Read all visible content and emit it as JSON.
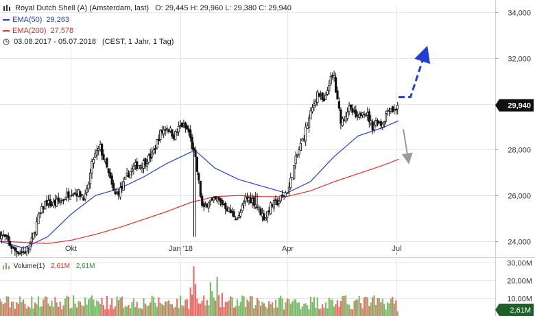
{
  "header": {
    "instrument": "Royal Dutch Shell (A) (Amsterdam, last)",
    "ohlc": "O: 29,445  H: 29,960  L: 29,380  C: 29,940",
    "ema50_label": "EMA(50)",
    "ema50_value": "29,263",
    "ema200_label": "EMA(200)",
    "ema200_value": "27,578",
    "period": "03.08.2017 - 05.07.2018",
    "period_note": "(CEST, 1 Jahr, 1 Tag)"
  },
  "volume_legend": {
    "label": "Volume(1)",
    "value_red": "2,61M",
    "value_green": "2,61M"
  },
  "colors": {
    "ema50": "#1f3fd6",
    "ema200": "#e0302a",
    "candle": "#111111",
    "vol_up": "#7cbc6a",
    "vol_down": "#e8706a",
    "grid": "#e6e6e6",
    "last_price_bg": "#111111",
    "volume_last_bg": "#1f5f2a",
    "projection_up": "#1f3fd6",
    "projection_down": "#9a9a9a"
  },
  "chart_data": {
    "type": "candlestick",
    "x_start": "03.08.2017",
    "x_end": "05.07.2018",
    "x_ticks": [
      "Okt",
      "Jan '18",
      "Apr",
      "Jul"
    ],
    "x_tick_days": [
      59,
      151,
      241,
      332
    ],
    "y_ticks": [
      "24,000",
      "26,000",
      "28,000",
      "30,000",
      "32,000",
      "34,000"
    ],
    "y_tick_values": [
      24,
      26,
      28,
      30,
      32,
      34
    ],
    "ylim": [
      23.4,
      34.3
    ],
    "last_price_label": "29,940",
    "last_price": 29.94,
    "close_anchor_days": [
      0,
      5,
      12,
      20,
      26,
      32,
      38,
      44,
      52,
      60,
      66,
      72,
      78,
      84,
      90,
      96,
      102,
      108,
      114,
      120,
      128,
      134,
      140,
      146,
      152,
      158,
      164,
      170,
      175,
      178,
      182,
      188,
      194,
      200,
      206,
      212,
      218,
      222,
      226,
      232,
      236,
      238,
      242,
      248,
      254,
      260,
      266,
      272,
      276,
      280,
      282,
      286,
      292,
      296,
      300,
      304,
      308,
      312,
      316,
      320,
      326,
      330,
      334
    ],
    "close_anchor_values": [
      24.3,
      24.1,
      23.6,
      23.5,
      23.9,
      25.0,
      25.7,
      25.6,
      25.8,
      26.2,
      26.1,
      25.9,
      27.6,
      28.1,
      27.1,
      26.0,
      26.3,
      27.0,
      27.3,
      27.4,
      27.8,
      28.7,
      29.0,
      28.6,
      29.1,
      28.8,
      27.5,
      25.3,
      25.8,
      25.7,
      25.8,
      25.6,
      25.2,
      25.0,
      25.9,
      25.8,
      25.3,
      25.0,
      25.5,
      25.7,
      25.9,
      26.0,
      26.3,
      27.6,
      28.5,
      29.5,
      30.5,
      30.0,
      31.0,
      31.2,
      30.3,
      29.2,
      29.8,
      29.6,
      29.3,
      29.8,
      29.5,
      29.0,
      29.3,
      29.1,
      29.9,
      29.7,
      29.94
    ],
    "ema50_anchor_days": [
      0,
      20,
      40,
      60,
      80,
      100,
      120,
      140,
      160,
      165,
      180,
      200,
      220,
      240,
      260,
      280,
      300,
      320,
      334
    ],
    "ema50_anchor_values": [
      24.0,
      23.7,
      24.2,
      25.2,
      26.0,
      26.3,
      26.8,
      27.4,
      27.9,
      27.9,
      27.2,
      26.7,
      26.4,
      26.1,
      26.6,
      27.7,
      28.6,
      28.95,
      29.263
    ],
    "ema200_anchor_days": [
      0,
      20,
      40,
      60,
      80,
      100,
      120,
      140,
      160,
      180,
      200,
      220,
      240,
      260,
      280,
      300,
      320,
      334
    ],
    "ema200_anchor_values": [
      24.0,
      23.95,
      23.9,
      24.05,
      24.3,
      24.6,
      24.95,
      25.3,
      25.7,
      25.95,
      26.0,
      25.95,
      25.95,
      26.2,
      26.6,
      26.95,
      27.3,
      27.578
    ],
    "volume_ticks": [
      "10,00M",
      "20,00M",
      "30,00M"
    ],
    "volume_tick_values": [
      10,
      20,
      30
    ],
    "volume_ylim": [
      0,
      32
    ],
    "volume_last_label": "2,61M",
    "volume_last": 2.61,
    "volume_typical_millions": 9,
    "volume_spikes_days": [
      160,
      161,
      162,
      163,
      176,
      178,
      182,
      186
    ],
    "volume_spikes_values": [
      16,
      12,
      28,
      18,
      19,
      14,
      22,
      13
    ],
    "projection_up_days": [
      334,
      344,
      356
    ],
    "projection_up_values": [
      30.3,
      30.3,
      32.2
    ],
    "projection_down_days": [
      338,
      342
    ],
    "projection_down_values": [
      28.9,
      27.6
    ]
  }
}
